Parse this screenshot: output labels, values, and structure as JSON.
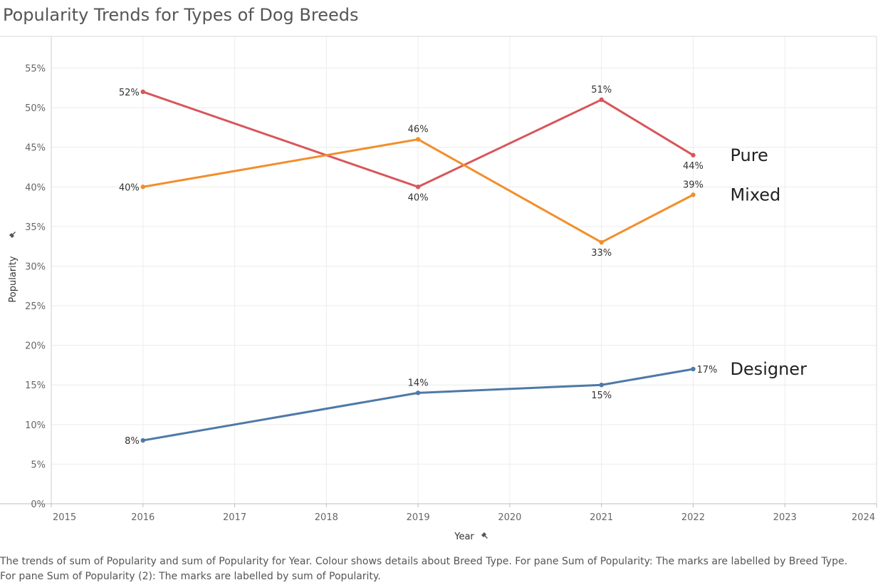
{
  "page": {
    "title": "Popularity Trends for Types of Dog Breeds",
    "caption_line1": "The trends of sum of Popularity and sum of Popularity for Year.  Colour shows details about Breed Type.  For pane Sum of Popularity:  The marks are labelled by Breed Type.",
    "caption_line2": "For pane Sum of Popularity (2):  The marks are labelled by sum of Popularity."
  },
  "chart_data": {
    "type": "line",
    "title": "Popularity Trends for Types of Dog Breeds",
    "xlabel": "Year",
    "ylabel": "Popularity",
    "xlim": [
      2015,
      2024
    ],
    "ylim": [
      0,
      0.59
    ],
    "x_ticks": [
      2015,
      2016,
      2017,
      2018,
      2019,
      2020,
      2021,
      2022,
      2023,
      2024
    ],
    "y_ticks": [
      0,
      0.05,
      0.1,
      0.15,
      0.2,
      0.25,
      0.3,
      0.35,
      0.4,
      0.45,
      0.5,
      0.55
    ],
    "grid": true,
    "legend": "inline labels at line ends",
    "series": [
      {
        "name": "Pure",
        "color": "#d9555a",
        "x": [
          2016,
          2019,
          2021,
          2022
        ],
        "y": [
          0.52,
          0.4,
          0.51,
          0.44
        ],
        "labels": [
          "52%",
          "40%",
          "51%",
          "44%"
        ],
        "label_pos": [
          "left",
          "below",
          "above",
          "below"
        ]
      },
      {
        "name": "Mixed",
        "color": "#f28e2b",
        "x": [
          2016,
          2019,
          2021,
          2022
        ],
        "y": [
          0.4,
          0.46,
          0.33,
          0.39
        ],
        "labels": [
          "40%",
          "46%",
          "33%",
          "39%"
        ],
        "label_pos": [
          "left",
          "above",
          "below",
          "above"
        ]
      },
      {
        "name": "Designer",
        "color": "#4e79a7",
        "x": [
          2016,
          2019,
          2021,
          2022
        ],
        "y": [
          0.08,
          0.14,
          0.15,
          0.17
        ],
        "labels": [
          "8%",
          "14%",
          "15%",
          "17%"
        ],
        "label_pos": [
          "left",
          "above",
          "below",
          "right"
        ]
      }
    ]
  }
}
